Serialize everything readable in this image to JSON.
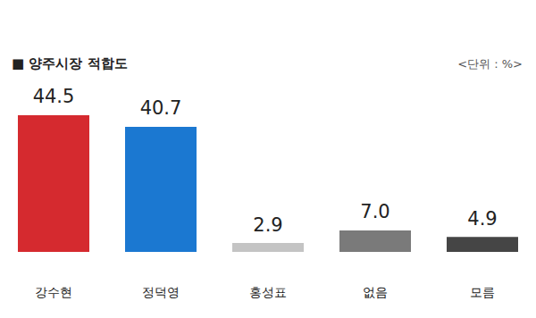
{
  "chart_data": {
    "type": "bar",
    "title": "■ 양주시장 적합도",
    "subtitle": "<단위 : %>",
    "categories": [
      "강수현",
      "정덕영",
      "홍성표",
      "없음",
      "모름"
    ],
    "values": [
      44.5,
      40.7,
      2.9,
      7.0,
      4.9
    ],
    "value_labels": [
      "44.5",
      "40.7",
      "2.9",
      "7.0",
      "4.9"
    ],
    "colors": [
      "#d52a2f",
      "#1b78d1",
      "#c4c4c4",
      "#7a7a7a",
      "#454545"
    ],
    "ylim": [
      0,
      50
    ],
    "grid": false,
    "tick_labels": "x",
    "data_labels": true
  }
}
